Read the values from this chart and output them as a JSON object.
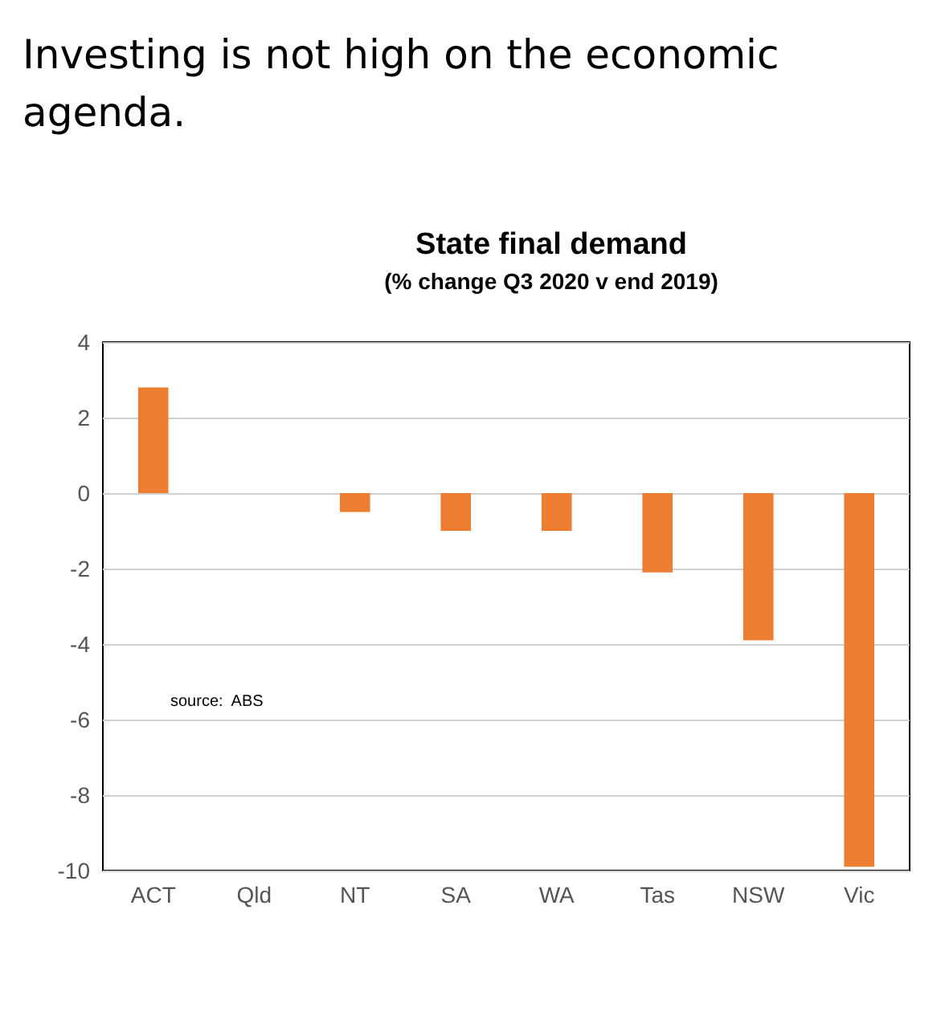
{
  "chart_data": {
    "type": "bar",
    "title": "State final demand",
    "subtitle": "(% change Q3 2020 v end 2019)",
    "annotations": [
      "Investing is not high on the economic agenda.",
      "source:  ABS"
    ],
    "categories": [
      "ACT",
      "Qld",
      "NT",
      "SA",
      "WA",
      "Tas",
      "NSW",
      "Vic"
    ],
    "values": [
      2.8,
      0,
      -0.5,
      -1.0,
      -1.0,
      -2.1,
      -3.9,
      -9.9
    ],
    "color": "#ed7d31",
    "ylim": [
      -10,
      4
    ],
    "yticks": [
      -10,
      -8,
      -6,
      -4,
      -2,
      0,
      2,
      4
    ],
    "grid": "y"
  }
}
